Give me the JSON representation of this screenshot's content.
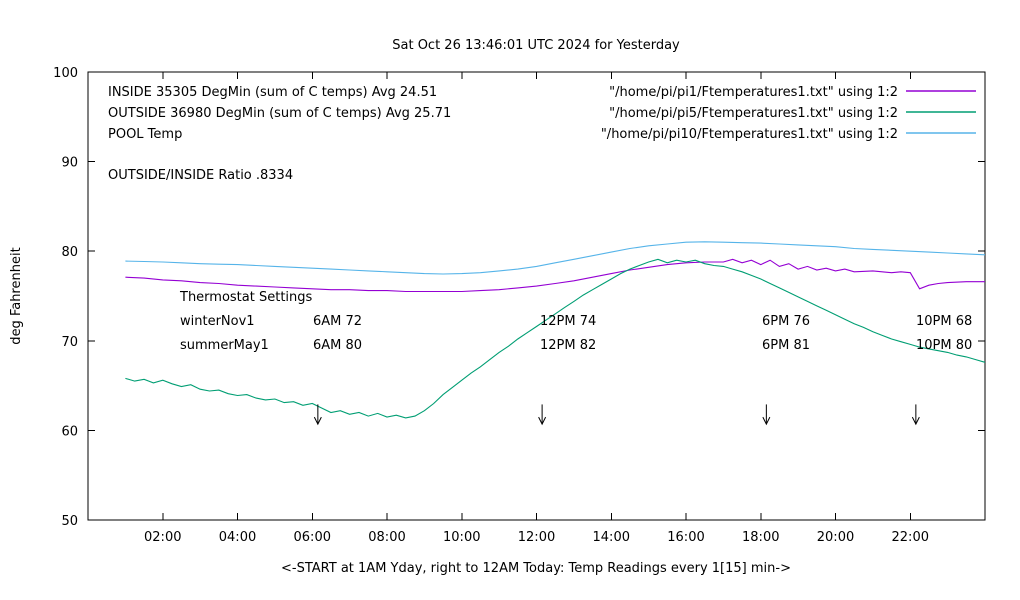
{
  "title": "Sat Oct 26 13:46:01 UTC 2024 for Yesterday",
  "ylabel": "deg Fahrenheit",
  "xlabel": "<-START at 1AM Yday, right to 12AM Today:  Temp Readings every 1[15] min->",
  "legend": {
    "rows": [
      {
        "label": "INSIDE 35305 DegMin (sum of C temps) Avg 24.51",
        "file": "\"/home/pi/pi1/Ftemperatures1.txt\" using 1:2"
      },
      {
        "label": "OUTSIDE 36980 DegMin (sum of C temps) Avg 25.71",
        "file": "\"/home/pi/pi5/Ftemperatures1.txt\" using 1:2"
      },
      {
        "label": "POOL Temp",
        "file": "\"/home/pi/pi10/Ftemperatures1.txt\" using 1:2"
      }
    ],
    "ratio_label": "OUTSIDE/INSIDE Ratio .8334"
  },
  "thermostat": {
    "title": "Thermostat Settings",
    "rows": [
      {
        "name": "winterNov1",
        "settings": [
          "6AM 72",
          "12PM 74",
          "6PM 76",
          "10PM 68"
        ]
      },
      {
        "name": "summerMay1",
        "settings": [
          "6AM 80",
          "12PM 82",
          "6PM 81",
          "10PM 80"
        ]
      }
    ]
  },
  "chart_data": {
    "type": "line",
    "title": "Sat Oct 26 13:46:01 UTC 2024 for Yesterday",
    "xlabel": "<-START at 1AM Yday, right to 12AM Today:  Temp Readings every 1[15] min->",
    "ylabel": "deg Fahrenheit",
    "xlim": [
      0,
      24
    ],
    "ylim": [
      50,
      100
    ],
    "yticks": [
      50,
      60,
      70,
      80,
      90,
      100
    ],
    "xticks": [
      {
        "h": 2,
        "label": "02:00"
      },
      {
        "h": 4,
        "label": "04:00"
      },
      {
        "h": 6,
        "label": "06:00"
      },
      {
        "h": 8,
        "label": "08:00"
      },
      {
        "h": 10,
        "label": "10:00"
      },
      {
        "h": 12,
        "label": "12:00"
      },
      {
        "h": 14,
        "label": "14:00"
      },
      {
        "h": 16,
        "label": "16:00"
      },
      {
        "h": 18,
        "label": "18:00"
      },
      {
        "h": 20,
        "label": "20:00"
      },
      {
        "h": 22,
        "label": "22:00"
      }
    ],
    "arrows": {
      "x_hours": [
        6.15,
        12.15,
        18.15,
        22.15
      ],
      "y_top": 62.9,
      "y_bottom": 60.7
    },
    "series": [
      {
        "name": "INSIDE",
        "color": "#9400d3",
        "points": [
          [
            1.0,
            77.1
          ],
          [
            1.5,
            77.0
          ],
          [
            2.0,
            76.8
          ],
          [
            2.5,
            76.7
          ],
          [
            3.0,
            76.5
          ],
          [
            3.5,
            76.4
          ],
          [
            4.0,
            76.2
          ],
          [
            4.5,
            76.1
          ],
          [
            5.0,
            76.0
          ],
          [
            5.5,
            75.9
          ],
          [
            6.0,
            75.8
          ],
          [
            6.5,
            75.7
          ],
          [
            7.0,
            75.7
          ],
          [
            7.5,
            75.6
          ],
          [
            8.0,
            75.6
          ],
          [
            8.5,
            75.5
          ],
          [
            9.0,
            75.5
          ],
          [
            9.5,
            75.5
          ],
          [
            10.0,
            75.5
          ],
          [
            10.5,
            75.6
          ],
          [
            11.0,
            75.7
          ],
          [
            11.5,
            75.9
          ],
          [
            12.0,
            76.1
          ],
          [
            12.5,
            76.4
          ],
          [
            13.0,
            76.7
          ],
          [
            13.5,
            77.1
          ],
          [
            14.0,
            77.5
          ],
          [
            14.5,
            77.9
          ],
          [
            15.0,
            78.2
          ],
          [
            15.5,
            78.5
          ],
          [
            16.0,
            78.7
          ],
          [
            16.5,
            78.8
          ],
          [
            17.0,
            78.8
          ],
          [
            17.25,
            79.1
          ],
          [
            17.5,
            78.7
          ],
          [
            17.75,
            79.0
          ],
          [
            18.0,
            78.5
          ],
          [
            18.25,
            79.0
          ],
          [
            18.5,
            78.3
          ],
          [
            18.75,
            78.6
          ],
          [
            19.0,
            78.0
          ],
          [
            19.25,
            78.3
          ],
          [
            19.5,
            77.9
          ],
          [
            19.75,
            78.1
          ],
          [
            20.0,
            77.8
          ],
          [
            20.25,
            78.0
          ],
          [
            20.5,
            77.7
          ],
          [
            21.0,
            77.8
          ],
          [
            21.5,
            77.6
          ],
          [
            21.75,
            77.7
          ],
          [
            22.0,
            77.6
          ],
          [
            22.25,
            75.8
          ],
          [
            22.5,
            76.2
          ],
          [
            22.75,
            76.4
          ],
          [
            23.0,
            76.5
          ],
          [
            23.5,
            76.6
          ],
          [
            24.0,
            76.6
          ]
        ]
      },
      {
        "name": "OUTSIDE",
        "color": "#009e73",
        "points": [
          [
            1.0,
            65.8
          ],
          [
            1.25,
            65.5
          ],
          [
            1.5,
            65.7
          ],
          [
            1.75,
            65.3
          ],
          [
            2.0,
            65.6
          ],
          [
            2.25,
            65.2
          ],
          [
            2.5,
            64.9
          ],
          [
            2.75,
            65.1
          ],
          [
            3.0,
            64.6
          ],
          [
            3.25,
            64.4
          ],
          [
            3.5,
            64.5
          ],
          [
            3.75,
            64.1
          ],
          [
            4.0,
            63.9
          ],
          [
            4.25,
            64.0
          ],
          [
            4.5,
            63.6
          ],
          [
            4.75,
            63.4
          ],
          [
            5.0,
            63.5
          ],
          [
            5.25,
            63.1
          ],
          [
            5.5,
            63.2
          ],
          [
            5.75,
            62.8
          ],
          [
            6.0,
            63.0
          ],
          [
            6.25,
            62.5
          ],
          [
            6.5,
            62.0
          ],
          [
            6.75,
            62.2
          ],
          [
            7.0,
            61.8
          ],
          [
            7.25,
            62.0
          ],
          [
            7.5,
            61.6
          ],
          [
            7.75,
            61.9
          ],
          [
            8.0,
            61.5
          ],
          [
            8.25,
            61.7
          ],
          [
            8.5,
            61.4
          ],
          [
            8.75,
            61.6
          ],
          [
            9.0,
            62.2
          ],
          [
            9.25,
            63.0
          ],
          [
            9.5,
            64.0
          ],
          [
            9.75,
            64.8
          ],
          [
            10.0,
            65.6
          ],
          [
            10.25,
            66.4
          ],
          [
            10.5,
            67.1
          ],
          [
            10.75,
            67.9
          ],
          [
            11.0,
            68.7
          ],
          [
            11.25,
            69.4
          ],
          [
            11.5,
            70.2
          ],
          [
            11.75,
            70.9
          ],
          [
            12.0,
            71.6
          ],
          [
            12.25,
            72.3
          ],
          [
            12.5,
            73.0
          ],
          [
            12.75,
            73.7
          ],
          [
            13.0,
            74.4
          ],
          [
            13.25,
            75.1
          ],
          [
            13.5,
            75.7
          ],
          [
            13.75,
            76.3
          ],
          [
            14.0,
            76.9
          ],
          [
            14.25,
            77.5
          ],
          [
            14.5,
            78.0
          ],
          [
            14.75,
            78.4
          ],
          [
            15.0,
            78.8
          ],
          [
            15.25,
            79.1
          ],
          [
            15.5,
            78.7
          ],
          [
            15.75,
            79.0
          ],
          [
            16.0,
            78.8
          ],
          [
            16.25,
            79.0
          ],
          [
            16.5,
            78.6
          ],
          [
            16.75,
            78.4
          ],
          [
            17.0,
            78.3
          ],
          [
            17.25,
            78.0
          ],
          [
            17.5,
            77.7
          ],
          [
            17.75,
            77.3
          ],
          [
            18.0,
            76.9
          ],
          [
            18.25,
            76.4
          ],
          [
            18.5,
            75.9
          ],
          [
            18.75,
            75.4
          ],
          [
            19.0,
            74.9
          ],
          [
            19.25,
            74.4
          ],
          [
            19.5,
            73.9
          ],
          [
            19.75,
            73.4
          ],
          [
            20.0,
            72.9
          ],
          [
            20.25,
            72.4
          ],
          [
            20.5,
            71.9
          ],
          [
            20.75,
            71.5
          ],
          [
            21.0,
            71.0
          ],
          [
            21.25,
            70.6
          ],
          [
            21.5,
            70.2
          ],
          [
            21.75,
            69.9
          ],
          [
            22.0,
            69.6
          ],
          [
            22.25,
            69.3
          ],
          [
            22.5,
            69.1
          ],
          [
            22.75,
            68.9
          ],
          [
            23.0,
            68.7
          ],
          [
            23.25,
            68.4
          ],
          [
            23.5,
            68.2
          ],
          [
            23.75,
            67.9
          ],
          [
            24.0,
            67.6
          ]
        ]
      },
      {
        "name": "POOL",
        "color": "#56b4e9",
        "points": [
          [
            1.0,
            78.9
          ],
          [
            1.5,
            78.85
          ],
          [
            2.0,
            78.8
          ],
          [
            2.5,
            78.7
          ],
          [
            3.0,
            78.6
          ],
          [
            3.5,
            78.55
          ],
          [
            4.0,
            78.5
          ],
          [
            4.5,
            78.4
          ],
          [
            5.0,
            78.3
          ],
          [
            5.5,
            78.2
          ],
          [
            6.0,
            78.1
          ],
          [
            6.5,
            78.0
          ],
          [
            7.0,
            77.9
          ],
          [
            7.5,
            77.8
          ],
          [
            8.0,
            77.7
          ],
          [
            8.5,
            77.6
          ],
          [
            9.0,
            77.5
          ],
          [
            9.5,
            77.45
          ],
          [
            10.0,
            77.5
          ],
          [
            10.5,
            77.6
          ],
          [
            11.0,
            77.8
          ],
          [
            11.5,
            78.0
          ],
          [
            12.0,
            78.3
          ],
          [
            12.5,
            78.7
          ],
          [
            13.0,
            79.1
          ],
          [
            13.5,
            79.5
          ],
          [
            14.0,
            79.9
          ],
          [
            14.5,
            80.3
          ],
          [
            15.0,
            80.6
          ],
          [
            15.5,
            80.8
          ],
          [
            16.0,
            81.0
          ],
          [
            16.5,
            81.05
          ],
          [
            17.0,
            81.0
          ],
          [
            17.5,
            80.95
          ],
          [
            18.0,
            80.9
          ],
          [
            18.5,
            80.8
          ],
          [
            19.0,
            80.7
          ],
          [
            19.5,
            80.6
          ],
          [
            20.0,
            80.5
          ],
          [
            20.5,
            80.3
          ],
          [
            21.0,
            80.2
          ],
          [
            21.5,
            80.1
          ],
          [
            22.0,
            80.0
          ],
          [
            22.5,
            79.9
          ],
          [
            23.0,
            79.8
          ],
          [
            23.5,
            79.7
          ],
          [
            24.0,
            79.6
          ]
        ]
      }
    ]
  }
}
